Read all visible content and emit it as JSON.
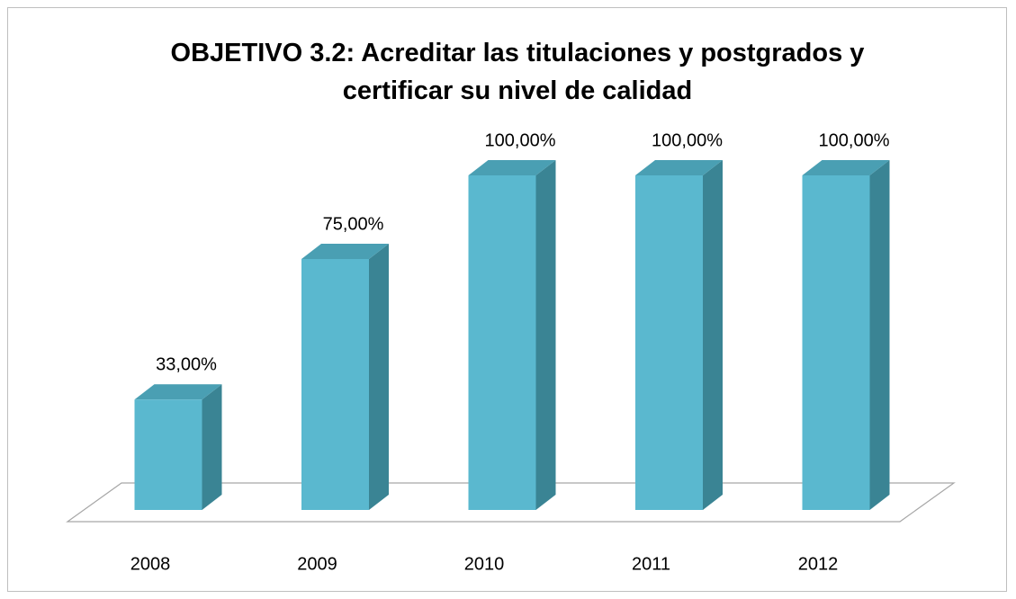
{
  "chart_data": {
    "type": "bar3d",
    "title": "OBJETIVO 3.2: Acreditar las titulaciones y postgrados y certificar su nivel de calidad",
    "categories": [
      "2008",
      "2009",
      "2010",
      "2011",
      "2012"
    ],
    "values": [
      33,
      75,
      100,
      100,
      100
    ],
    "value_labels": [
      "33,00%",
      "75,00%",
      "100,00%",
      "100,00%",
      "100,00%"
    ],
    "colors": {
      "front": "#5ab8cf",
      "side": "#3a8494",
      "top": "#4a9fb3"
    }
  }
}
